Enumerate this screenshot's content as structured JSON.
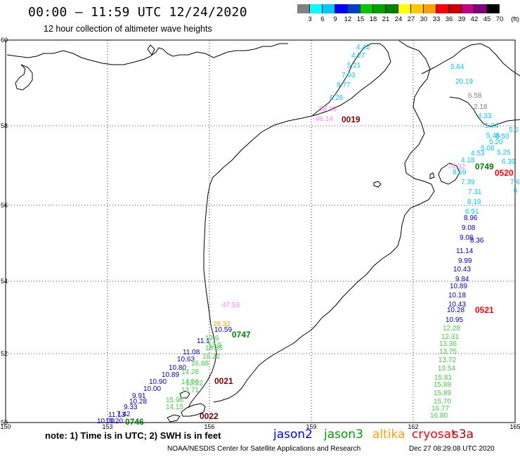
{
  "header": {
    "title": "00:00 – 11:59 UTC 12/24/2020",
    "subtitle": "12 hour collection of altimeter wave heights"
  },
  "colorbar": {
    "colors": [
      "#808080",
      "#00ffff",
      "#00c8ff",
      "#0000ff",
      "#0040c8",
      "#00c800",
      "#00a000",
      "#008000",
      "#ffff00",
      "#ffc800",
      "#ffa000",
      "#ff0000",
      "#c80000",
      "#c00080",
      "#800080",
      "#000000"
    ],
    "labels": [
      "3",
      "6",
      "9",
      "12",
      "15",
      "18",
      "21",
      "24",
      "27",
      "30",
      "33",
      "36",
      "39",
      "42",
      "45",
      "70",
      "(ft)"
    ]
  },
  "map": {
    "lat_labels": [
      "60",
      "58",
      "56",
      "54",
      "52",
      "50"
    ],
    "lon_labels": [
      "150",
      "153",
      "156",
      "159",
      "162",
      "165"
    ]
  },
  "tracks": [
    {
      "color": "#00c8ff",
      "labels": [
        "4.42",
        "4.27",
        "5.21",
        "7.93",
        "8.77",
        "6.26"
      ]
    },
    {
      "color": "#ff80ff",
      "labels": [
        "58.13",
        "46.14"
      ]
    },
    {
      "color": "#00c8ff",
      "labels": [
        "5.64",
        "20.19"
      ]
    },
    {
      "color": "#808080",
      "labels": [
        "6.58",
        "2.18"
      ]
    },
    {
      "color": "#00c8ff",
      "labels": [
        "4.33",
        "5.04",
        "5.45",
        "6.50",
        "5.20",
        "5.08",
        "5.25",
        "4.53",
        "4.18",
        "6.39",
        "8.59",
        "7.39",
        "7.31",
        "8.19",
        "6.91",
        "5.6",
        "7.6",
        "6"
      ]
    },
    {
      "color": "#ff80ff",
      "labels": [
        "74.32"
      ]
    },
    {
      "color": "#0000c8",
      "labels": [
        "8.96",
        "9.08",
        "8.36",
        "9.08",
        "11.14",
        "9.99",
        "10.43",
        "9.84",
        "10.89",
        "10.18",
        "10.43",
        "10.28",
        "10.95"
      ]
    },
    {
      "color": "#40d040",
      "labels": [
        "12.28",
        "12.31",
        "13.36",
        "13.75",
        "13.72",
        "13.54",
        "15.81",
        "15.89",
        "15.89",
        "15.70",
        "16.77",
        "16.80"
      ]
    },
    {
      "color": "#ff80ff",
      "labels": [
        "47.53"
      ]
    },
    {
      "color": "#ffa000",
      "labels": [
        "28.32"
      ]
    },
    {
      "color": "#0000c8",
      "labels": [
        "10.59",
        "11.1",
        "11.08",
        "10.63",
        "10.80",
        "10.89",
        "10.90",
        "10.00",
        "9.91",
        "10.28",
        "9.33",
        "7.42",
        "11.13",
        "10.20",
        "10.00"
      ]
    },
    {
      "color": "#40d040",
      "labels": [
        "13.6",
        "13.5",
        "18.35",
        "18.22",
        "16.88",
        "14.28",
        "14.56",
        "13.22",
        "13.71",
        "15.96",
        "14.15"
      ]
    }
  ],
  "pass_labels": [
    {
      "text": "0019",
      "color": "#800000"
    },
    {
      "text": "0749",
      "color": "#008000"
    },
    {
      "text": "0520",
      "color": "#ff0000"
    },
    {
      "text": "0521",
      "color": "#ff0000"
    },
    {
      "text": "0747",
      "color": "#008000"
    },
    {
      "text": "0021",
      "color": "#800000"
    },
    {
      "text": "0022",
      "color": "#800000"
    },
    {
      "text": "0746",
      "color": "#008000"
    }
  ],
  "note": "note: 1) Time is in UTC; 2) SWH is in feet",
  "legend": [
    {
      "text": "jason2",
      "color": "#0000ff"
    },
    {
      "text": "jason3",
      "color": "#00a000"
    },
    {
      "text": "altika",
      "color": "#ffa000"
    },
    {
      "text": "cryosat",
      "color": "#ff0000"
    },
    {
      "text": "s3a",
      "color": "#c00000"
    }
  ],
  "footer": {
    "left": "NOAA/NESDIS Center for Satellite Applications and Research",
    "right": "Dec 27 08:29:08 UTC 2020"
  }
}
